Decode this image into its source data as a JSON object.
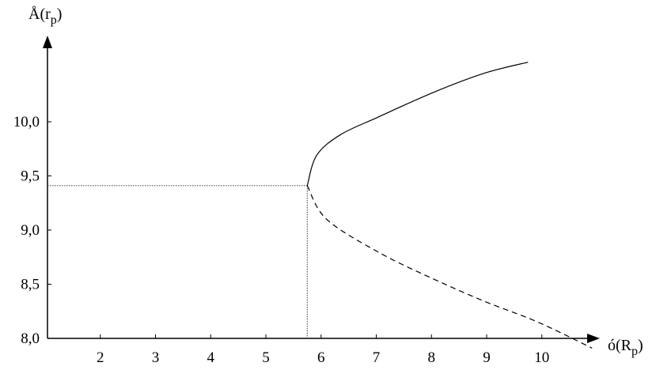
{
  "chart_data": {
    "type": "line",
    "xlabel": "ó(R",
    "xlabel_sub": "p",
    "ylabel": "Å(r",
    "ylabel_sub": "p",
    "x_ticks": [
      2,
      3,
      4,
      5,
      6,
      7,
      8,
      9,
      10
    ],
    "x_tick_labels": [
      "2",
      "3",
      "4",
      "5",
      "6",
      "7",
      "8",
      "9",
      "10"
    ],
    "y_ticks": [
      8.0,
      8.5,
      9.0,
      9.5,
      10.0
    ],
    "y_tick_labels": [
      "8,0",
      "8,5",
      "9,0",
      "9,5",
      "10,0"
    ],
    "xlim": [
      1,
      11
    ],
    "ylim": [
      8.0,
      10.8
    ],
    "grid": false,
    "series": [
      {
        "style": "solid",
        "color": "#000000",
        "x": [
          5.75,
          5.92,
          6.35,
          7.02,
          8.03,
          8.97,
          9.75
        ],
        "y": [
          9.41,
          9.69,
          9.88,
          10.04,
          10.27,
          10.45,
          10.55
        ]
      },
      {
        "style": "dashed",
        "color": "#000000",
        "x": [
          5.75,
          6.1,
          7.06,
          8.03,
          8.97,
          9.93,
          10.91
        ],
        "y": [
          9.41,
          9.1,
          8.79,
          8.55,
          8.34,
          8.15,
          7.91
        ]
      }
    ],
    "reference_point": {
      "x": 5.75,
      "y": 9.41,
      "style": "dotted"
    }
  }
}
